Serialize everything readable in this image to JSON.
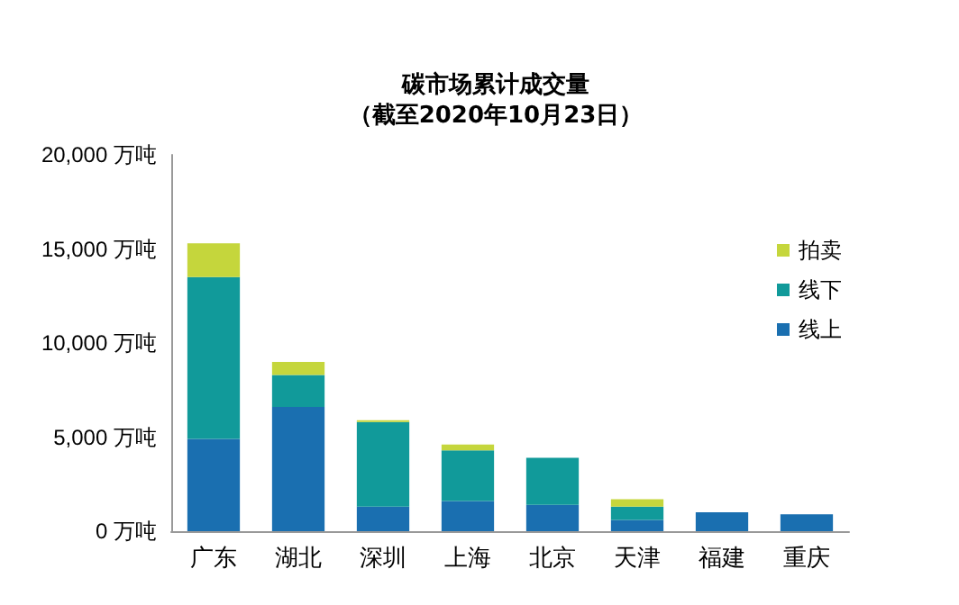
{
  "chart_data": {
    "type": "bar",
    "stacked": true,
    "title": "碳市场累计成交量",
    "subtitle": "（截至2020年10月23日）",
    "categories": [
      "广东",
      "湖北",
      "深圳",
      "上海",
      "北京",
      "天津",
      "福建",
      "重庆"
    ],
    "series": [
      {
        "name": "线上",
        "color": "#1a6fb0",
        "values": [
          4900,
          6600,
          1300,
          1600,
          1400,
          600,
          1000,
          900
        ]
      },
      {
        "name": "线下",
        "color": "#119a9a",
        "values": [
          8600,
          1700,
          4500,
          2700,
          2500,
          700,
          null,
          null
        ]
      },
      {
        "name": "拍卖",
        "color": "#c5d63c",
        "values": [
          1800,
          700,
          100,
          300,
          null,
          400,
          null,
          null
        ]
      }
    ],
    "ylim": [
      0,
      20000
    ],
    "yticks": [
      {
        "value": 0,
        "label": "0 万吨"
      },
      {
        "value": 5000,
        "label": "5,000 万吨"
      },
      {
        "value": 10000,
        "label": "10,000 万吨"
      },
      {
        "value": 15000,
        "label": "15,000 万吨"
      },
      {
        "value": 20000,
        "label": "20,000 万吨"
      }
    ],
    "grid": false,
    "legend": "right"
  }
}
